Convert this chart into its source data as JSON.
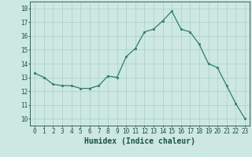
{
  "xlabel": "Humidex (Indice chaleur)",
  "x": [
    0,
    1,
    2,
    3,
    4,
    5,
    6,
    7,
    8,
    9,
    10,
    11,
    12,
    13,
    14,
    15,
    16,
    17,
    18,
    19,
    20,
    21,
    22,
    23
  ],
  "y": [
    13.3,
    13.0,
    12.5,
    12.4,
    12.4,
    12.2,
    12.2,
    12.4,
    13.1,
    13.0,
    14.5,
    15.1,
    16.3,
    16.5,
    17.1,
    17.8,
    16.5,
    16.3,
    15.4,
    14.0,
    13.7,
    12.4,
    11.1,
    10.0
  ],
  "line_color": "#2e7d6e",
  "marker": "s",
  "marker_size": 2.0,
  "bg_color": "#cce8e0",
  "grid_color": "#aacfc5",
  "ylim": [
    9.5,
    18.5
  ],
  "xlim": [
    -0.5,
    23.5
  ],
  "yticks": [
    10,
    11,
    12,
    13,
    14,
    15,
    16,
    17,
    18
  ],
  "xticks": [
    0,
    1,
    2,
    3,
    4,
    5,
    6,
    7,
    8,
    9,
    10,
    11,
    12,
    13,
    14,
    15,
    16,
    17,
    18,
    19,
    20,
    21,
    22,
    23
  ],
  "tick_label_fontsize": 5.5,
  "xlabel_fontsize": 7.0,
  "axis_color": "#1e5045",
  "line_width": 0.9
}
